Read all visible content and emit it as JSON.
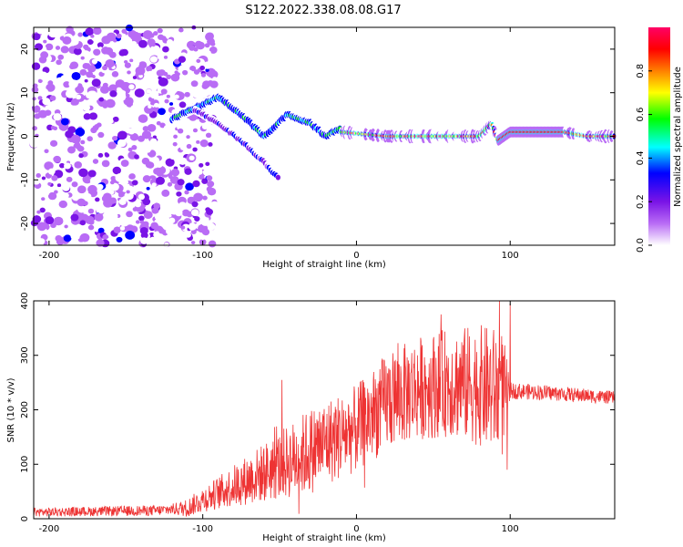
{
  "title": "S122.2022.338.08.08.G17",
  "chart_data": [
    {
      "type": "heatmap",
      "xlabel": "Height of straight line (km)",
      "ylabel": "Frequency (Hz)",
      "xlim": [
        -210,
        168
      ],
      "ylim": [
        -25,
        25
      ],
      "xticks": [
        -200,
        -100,
        0,
        100
      ],
      "yticks": [
        -20,
        -10,
        0,
        10,
        20
      ],
      "colorbar": {
        "label": "Normalized spectral amplitude",
        "range": [
          0,
          1
        ],
        "ticks": [
          "0.0",
          "0.2",
          "0.4",
          "0.6",
          "0.8"
        ],
        "colors": [
          "#ffffff",
          "#b96cf5",
          "#7a14e6",
          "#0000ff",
          "#00ffff",
          "#00ff00",
          "#ffff00",
          "#ff8000",
          "#ff0000",
          "#ff0066"
        ]
      },
      "features": [
        {
          "name": "noise",
          "x_range": [
            -210,
            -100
          ],
          "y_range": [
            -25,
            25
          ],
          "amplitude": 0.2
        },
        {
          "name": "upper_branch",
          "points": [
            [
              -120,
              4
            ],
            [
              -90,
              9
            ],
            [
              -75,
              5
            ],
            [
              -60,
              0
            ],
            [
              -45,
              5
            ],
            [
              -30,
              3
            ],
            [
              -20,
              0
            ],
            [
              -10,
              2
            ]
          ],
          "amplitude": 0.55
        },
        {
          "name": "lower_branch",
          "points": [
            [
              -105,
              6
            ],
            [
              -90,
              3
            ],
            [
              -75,
              -1
            ],
            [
              -60,
              -6
            ],
            [
              -50,
              -10
            ]
          ],
          "amplitude": 0.35
        },
        {
          "name": "main_signal",
          "points": [
            [
              -10,
              1
            ],
            [
              20,
              0
            ],
            [
              50,
              0
            ],
            [
              80,
              0
            ],
            [
              88,
              3
            ],
            [
              92,
              -1
            ],
            [
              100,
              1
            ],
            [
              135,
              1
            ],
            [
              150,
              0
            ],
            [
              168,
              0
            ]
          ],
          "amplitude": 0.9
        }
      ]
    },
    {
      "type": "line",
      "xlabel": "Height of straight line (km)",
      "ylabel": "SNR (10 * v/v)",
      "xlim": [
        -210,
        168
      ],
      "ylim": [
        0,
        400
      ],
      "xticks": [
        -200,
        -100,
        0,
        100
      ],
      "yticks": [
        0,
        100,
        200,
        300,
        400
      ],
      "color": "#ee3333",
      "envelope": [
        [
          -210,
          12
        ],
        [
          -130,
          15
        ],
        [
          -110,
          20
        ],
        [
          -100,
          35
        ],
        [
          -80,
          60
        ],
        [
          -60,
          85
        ],
        [
          -40,
          110
        ],
        [
          -20,
          140
        ],
        [
          0,
          165
        ],
        [
          20,
          215
        ],
        [
          40,
          240
        ],
        [
          60,
          250
        ],
        [
          80,
          245
        ],
        [
          95,
          230
        ],
        [
          100,
          235
        ],
        [
          120,
          232
        ],
        [
          140,
          228
        ],
        [
          168,
          222
        ]
      ],
      "noise": [
        [
          -210,
          8
        ],
        [
          -120,
          10
        ],
        [
          -90,
          30
        ],
        [
          -60,
          55
        ],
        [
          -30,
          80
        ],
        [
          0,
          80
        ],
        [
          20,
          90
        ],
        [
          60,
          100
        ],
        [
          95,
          120
        ],
        [
          100,
          15
        ],
        [
          168,
          12
        ]
      ],
      "spikes": [
        [
          55,
          375
        ],
        [
          100,
          395
        ],
        [
          98,
          90
        ]
      ]
    }
  ]
}
